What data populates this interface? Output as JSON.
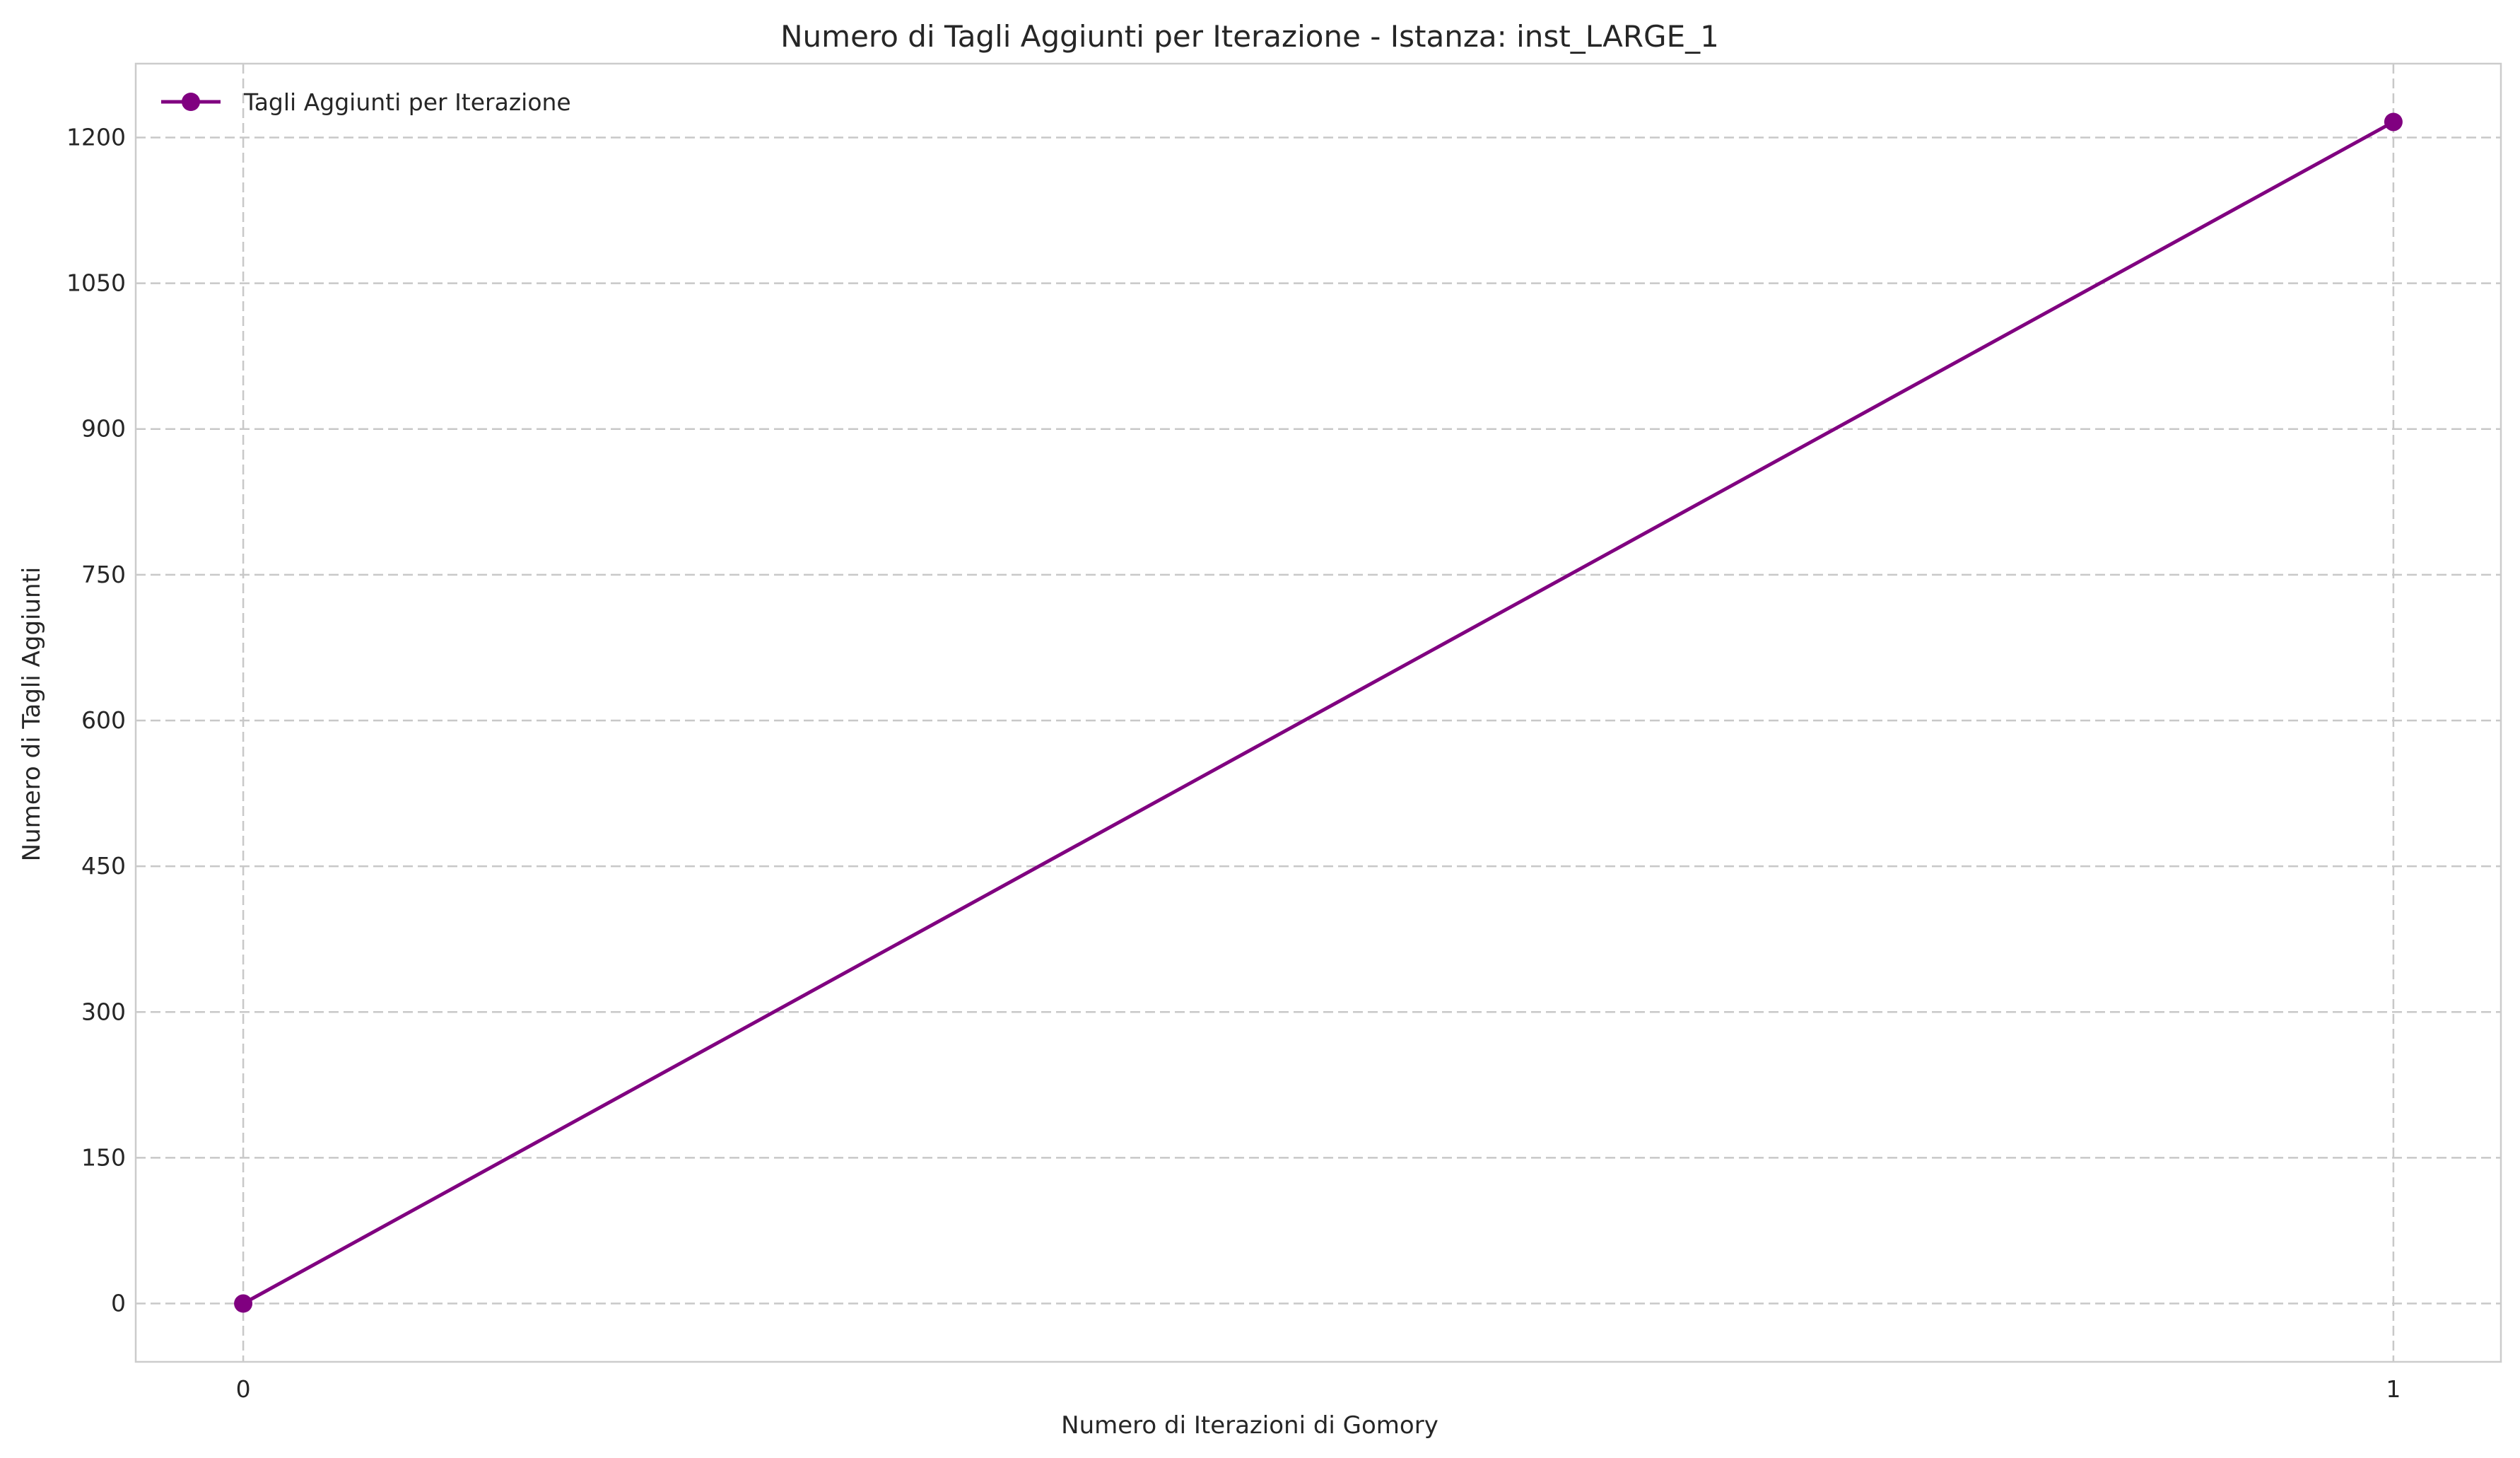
{
  "chart_data": {
    "type": "line",
    "title": "Numero di Tagli Aggiunti per Iterazione - Istanza: inst_LARGE_1",
    "xlabel": "Numero di Iterazioni di Gomory",
    "ylabel": "Numero di Tagli Aggiunti",
    "x": [
      0,
      1
    ],
    "xticks": [
      "0",
      "1"
    ],
    "yticks": [
      "0",
      "150",
      "300",
      "450",
      "600",
      "750",
      "900",
      "1050",
      "1200"
    ],
    "xlim": [
      -0.05,
      1.05
    ],
    "ylim": [
      -60,
      1276
    ],
    "grid": true,
    "grid_style": "dashed",
    "legend_position": "top-left",
    "series": [
      {
        "name": "Tagli Aggiunti per Iterazione",
        "values": [
          0,
          1216
        ],
        "color": "#800080",
        "marker": "circle"
      }
    ]
  }
}
